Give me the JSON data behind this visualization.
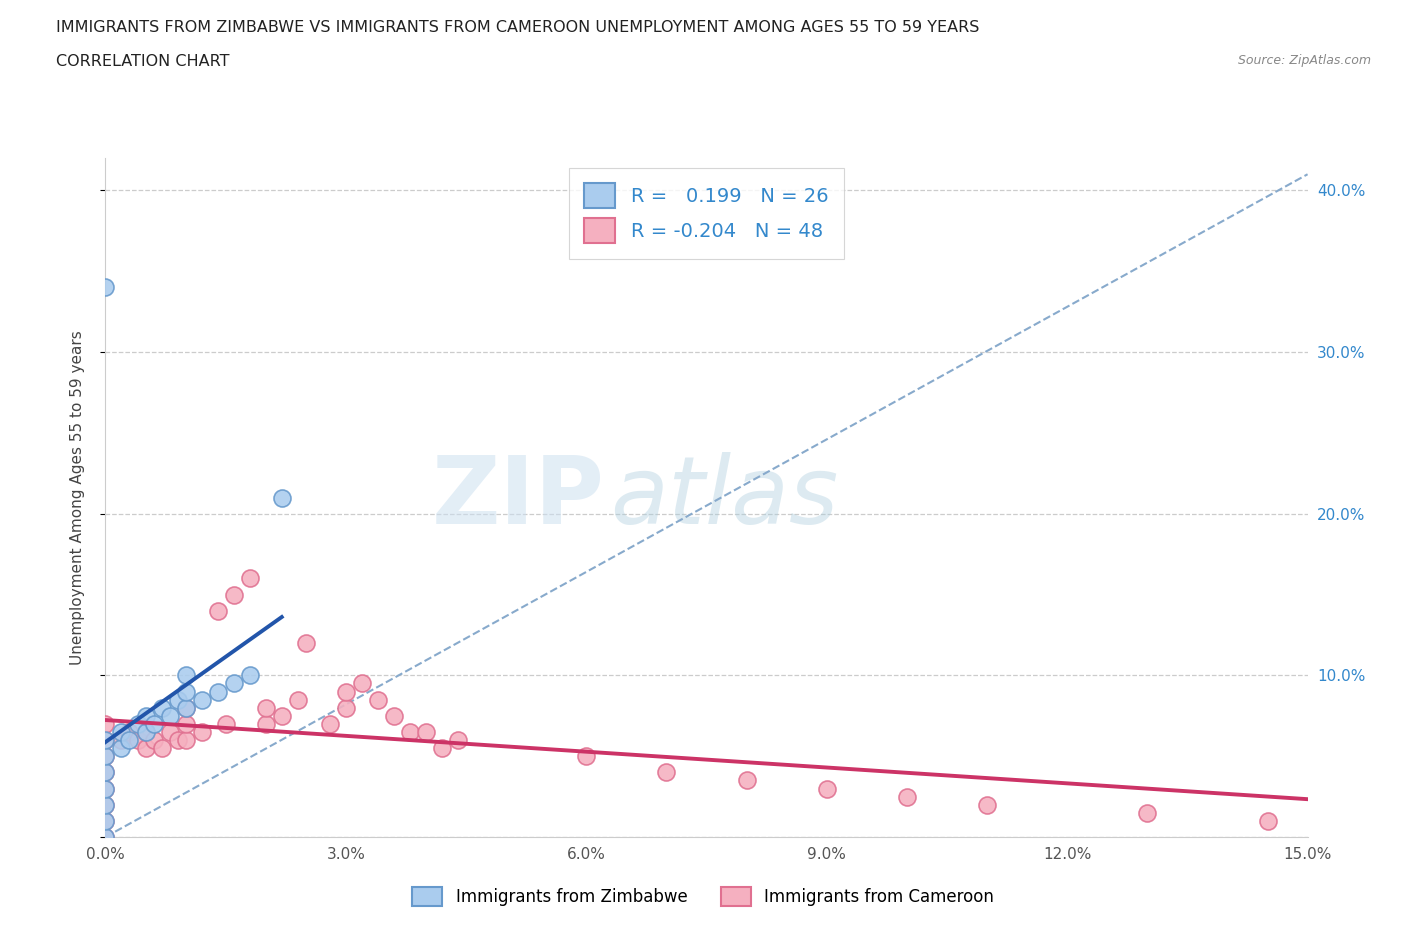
{
  "title_line1": "IMMIGRANTS FROM ZIMBABWE VS IMMIGRANTS FROM CAMEROON UNEMPLOYMENT AMONG AGES 55 TO 59 YEARS",
  "title_line2": "CORRELATION CHART",
  "source_text": "Source: ZipAtlas.com",
  "ylabel": "Unemployment Among Ages 55 to 59 years",
  "xlim": [
    0.0,
    0.15
  ],
  "ylim": [
    0.0,
    0.42
  ],
  "xticks": [
    0.0,
    0.03,
    0.06,
    0.09,
    0.12,
    0.15
  ],
  "xticklabels": [
    "0.0%",
    "3.0%",
    "6.0%",
    "9.0%",
    "12.0%",
    "15.0%"
  ],
  "yticks": [
    0.0,
    0.1,
    0.2,
    0.3,
    0.4
  ],
  "yticklabels_right": [
    "",
    "10.0%",
    "20.0%",
    "30.0%",
    "40.0%"
  ],
  "zimbabwe_color": "#aaccee",
  "zimbabwe_edge": "#6699cc",
  "cameroon_color": "#f5b0c0",
  "cameroon_edge": "#e07090",
  "trend_zimbabwe_color": "#2255aa",
  "trend_cameroon_color": "#cc3366",
  "trend_dashed_color": "#88aacc",
  "R_zimbabwe": 0.199,
  "N_zimbabwe": 26,
  "R_cameroon": -0.204,
  "N_cameroon": 48,
  "watermark_1": "ZIP",
  "watermark_2": "atlas",
  "zimbabwe_x": [
    0.0,
    0.0,
    0.0,
    0.0,
    0.0,
    0.0,
    0.0,
    0.0,
    0.002,
    0.002,
    0.003,
    0.004,
    0.005,
    0.005,
    0.006,
    0.007,
    0.008,
    0.009,
    0.01,
    0.01,
    0.01,
    0.012,
    0.014,
    0.016,
    0.018,
    0.022
  ],
  "zimbabwe_y": [
    0.0,
    0.01,
    0.02,
    0.03,
    0.04,
    0.05,
    0.06,
    0.34,
    0.055,
    0.065,
    0.06,
    0.07,
    0.065,
    0.075,
    0.07,
    0.08,
    0.075,
    0.085,
    0.08,
    0.09,
    0.1,
    0.085,
    0.09,
    0.095,
    0.1,
    0.21
  ],
  "cameroon_x": [
    0.0,
    0.0,
    0.0,
    0.0,
    0.0,
    0.0,
    0.0,
    0.0,
    0.002,
    0.003,
    0.004,
    0.005,
    0.005,
    0.006,
    0.007,
    0.008,
    0.009,
    0.01,
    0.01,
    0.01,
    0.012,
    0.014,
    0.015,
    0.016,
    0.018,
    0.02,
    0.02,
    0.022,
    0.024,
    0.025,
    0.028,
    0.03,
    0.03,
    0.032,
    0.034,
    0.036,
    0.038,
    0.04,
    0.042,
    0.044,
    0.06,
    0.07,
    0.08,
    0.09,
    0.1,
    0.11,
    0.13,
    0.145
  ],
  "cameroon_y": [
    0.0,
    0.01,
    0.02,
    0.03,
    0.04,
    0.05,
    0.06,
    0.07,
    0.06,
    0.065,
    0.06,
    0.055,
    0.065,
    0.06,
    0.055,
    0.065,
    0.06,
    0.06,
    0.07,
    0.08,
    0.065,
    0.14,
    0.07,
    0.15,
    0.16,
    0.07,
    0.08,
    0.075,
    0.085,
    0.12,
    0.07,
    0.08,
    0.09,
    0.095,
    0.085,
    0.075,
    0.065,
    0.065,
    0.055,
    0.06,
    0.05,
    0.04,
    0.035,
    0.03,
    0.025,
    0.02,
    0.015,
    0.01
  ]
}
